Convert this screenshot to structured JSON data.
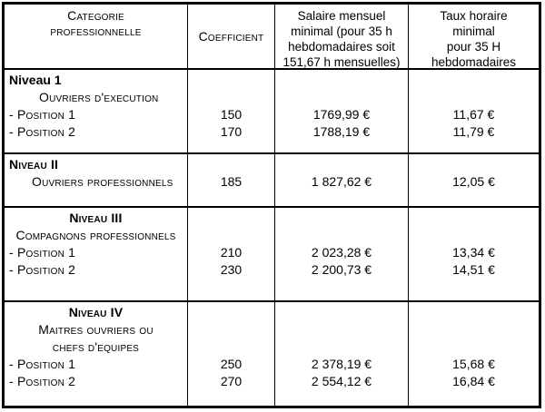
{
  "table": {
    "header": {
      "columns": [
        {
          "id": "categorie",
          "lines": [
            "Categorie",
            "professionnelle"
          ],
          "smallcaps": true,
          "valign": "top"
        },
        {
          "id": "coefficient",
          "lines": [
            "Coefficient"
          ],
          "smallcaps": true,
          "valign": "middle"
        },
        {
          "id": "salaire-mensuel",
          "lines": [
            "Salaire mensuel",
            "minimal (pour 35 h",
            "hebdomadaires soit",
            "151,67 h mensuelles)"
          ],
          "smallcaps": false,
          "valign": "top"
        },
        {
          "id": "taux-horaire",
          "lines": [
            "Taux horaire",
            "minimal",
            "pour 35 H",
            "hebdomadaires"
          ],
          "smallcaps": false,
          "valign": "top"
        }
      ]
    },
    "blocks": [
      {
        "id": "niveau-1",
        "category_lines": [
          {
            "text": "Niveau 1",
            "kind": "level",
            "smallcaps": false,
            "align": "left"
          },
          {
            "text": "Ouvriers d'execution",
            "kind": "label",
            "smallcaps": true,
            "align": "left",
            "indent": 38
          },
          {
            "text": "- Position 1",
            "kind": "position",
            "smallcaps": true,
            "align": "left"
          },
          {
            "text": "- Position 2",
            "kind": "position",
            "smallcaps": true,
            "align": "left"
          }
        ],
        "coefficients": [
          "",
          "",
          "150",
          "170"
        ],
        "salaries": [
          "",
          "",
          "1769,99 €",
          "1788,19 €"
        ],
        "rates": [
          "",
          "",
          "11,67 €",
          "11,79 €"
        ]
      },
      {
        "id": "niveau-2",
        "category_lines": [
          {
            "text": "Niveau II",
            "kind": "level",
            "smallcaps": true,
            "align": "left"
          },
          {
            "text": "Ouvriers professionnels",
            "kind": "label",
            "smallcaps": true,
            "align": "left",
            "indent": 30
          }
        ],
        "coefficients": [
          "",
          "185"
        ],
        "salaries": [
          "",
          "1 827,62 €"
        ],
        "rates": [
          "",
          "12,05 €"
        ]
      },
      {
        "id": "niveau-3",
        "category_lines": [
          {
            "text": "Niveau III",
            "kind": "level",
            "smallcaps": true,
            "align": "center"
          },
          {
            "text": "Compagnons professionnels",
            "kind": "label",
            "smallcaps": true,
            "align": "center"
          },
          {
            "text": "- Position 1",
            "kind": "position",
            "smallcaps": true,
            "align": "left"
          },
          {
            "text": "- Position 2",
            "kind": "position",
            "smallcaps": true,
            "align": "left"
          }
        ],
        "coefficients": [
          "",
          "",
          "210",
          "230"
        ],
        "salaries": [
          "",
          "",
          "2 023,28 €",
          "2 200,73 €"
        ],
        "rates": [
          "",
          "",
          "13,34 €",
          "14,51 €"
        ]
      },
      {
        "id": "niveau-4",
        "category_lines": [
          {
            "text": "Niveau IV",
            "kind": "level",
            "smallcaps": true,
            "align": "center"
          },
          {
            "text": "Maitres ouvriers ou",
            "kind": "label",
            "smallcaps": true,
            "align": "center"
          },
          {
            "text": "chefs d'equipes",
            "kind": "label",
            "smallcaps": true,
            "align": "center"
          },
          {
            "text": "- Position 1",
            "kind": "position",
            "smallcaps": true,
            "align": "left"
          },
          {
            "text": "- Position 2",
            "kind": "position",
            "smallcaps": true,
            "align": "left"
          }
        ],
        "coefficients": [
          "",
          "",
          "",
          "250",
          "270"
        ],
        "salaries": [
          "",
          "",
          "",
          "2 378,19 €",
          "2 554,12 €"
        ],
        "rates": [
          "",
          "",
          "",
          "15,68 €",
          "16,84 €"
        ]
      }
    ]
  },
  "colors": {
    "background": "#ffffff",
    "border": "#000000",
    "text": "#000000"
  }
}
